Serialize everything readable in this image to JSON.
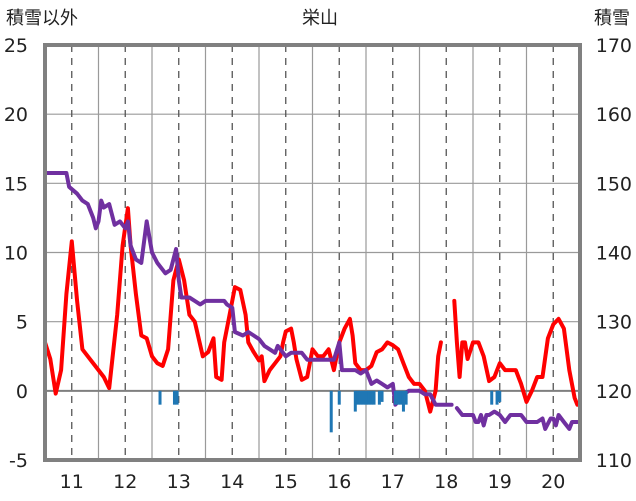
{
  "chart_data": {
    "type": "line",
    "title": "栄山",
    "left_axis_label": "積雪以外",
    "right_axis_label": "積雪",
    "x_ticks": [
      "11",
      "12",
      "13",
      "14",
      "15",
      "16",
      "17",
      "18",
      "19",
      "20"
    ],
    "xlim": [
      10.5,
      20.5
    ],
    "y_left": {
      "lim": [
        -5,
        25
      ],
      "ticks": [
        "-5",
        "0",
        "5",
        "10",
        "15",
        "20",
        "25"
      ]
    },
    "y_right": {
      "lim": [
        110,
        170
      ],
      "ticks": [
        "110",
        "120",
        "130",
        "140",
        "150",
        "160",
        "170"
      ]
    },
    "grid": {
      "vertical_dashed": true,
      "horizontal": true
    },
    "series": [
      {
        "axis": "left",
        "color": "#ff0000",
        "style": "line",
        "points": [
          [
            10.5,
            3.5
          ],
          [
            10.6,
            2.3
          ],
          [
            10.7,
            -0.2
          ],
          [
            10.8,
            1.5
          ],
          [
            10.9,
            7.0
          ],
          [
            11.0,
            10.8
          ],
          [
            11.1,
            6.5
          ],
          [
            11.2,
            3.0
          ],
          [
            11.3,
            2.5
          ],
          [
            11.5,
            1.5
          ],
          [
            11.6,
            1.0
          ],
          [
            11.7,
            0.2
          ],
          [
            11.85,
            5.5
          ],
          [
            11.95,
            10.5
          ],
          [
            12.05,
            13.2
          ],
          [
            12.1,
            10.5
          ],
          [
            12.2,
            7.0
          ],
          [
            12.3,
            4.0
          ],
          [
            12.4,
            3.8
          ],
          [
            12.5,
            2.5
          ],
          [
            12.6,
            2.0
          ],
          [
            12.7,
            1.8
          ],
          [
            12.8,
            3.0
          ],
          [
            12.9,
            8.0
          ],
          [
            13.0,
            9.5
          ],
          [
            13.1,
            8.0
          ],
          [
            13.2,
            5.5
          ],
          [
            13.3,
            5.0
          ],
          [
            13.45,
            2.5
          ],
          [
            13.55,
            2.8
          ],
          [
            13.65,
            3.8
          ],
          [
            13.7,
            1.0
          ],
          [
            13.8,
            0.8
          ],
          [
            13.85,
            3.5
          ],
          [
            13.95,
            5.5
          ],
          [
            14.05,
            7.5
          ],
          [
            14.15,
            7.3
          ],
          [
            14.25,
            5.5
          ],
          [
            14.3,
            3.5
          ],
          [
            14.4,
            2.8
          ],
          [
            14.5,
            2.2
          ],
          [
            14.55,
            2.5
          ],
          [
            14.6,
            0.7
          ],
          [
            14.7,
            1.5
          ],
          [
            14.8,
            2.0
          ],
          [
            14.9,
            2.5
          ],
          [
            14.95,
            3.5
          ],
          [
            15.0,
            4.3
          ],
          [
            15.1,
            4.5
          ],
          [
            15.15,
            3.5
          ],
          [
            15.2,
            2.3
          ],
          [
            15.3,
            0.8
          ],
          [
            15.4,
            1.0
          ],
          [
            15.5,
            3.0
          ],
          [
            15.6,
            2.5
          ],
          [
            15.7,
            2.5
          ],
          [
            15.8,
            3.0
          ],
          [
            15.9,
            1.5
          ],
          [
            16.0,
            3.5
          ],
          [
            16.1,
            4.5
          ],
          [
            16.2,
            5.2
          ],
          [
            16.25,
            4.0
          ],
          [
            16.3,
            2.0
          ],
          [
            16.4,
            1.5
          ],
          [
            16.5,
            1.5
          ],
          [
            16.6,
            1.8
          ],
          [
            16.7,
            2.8
          ],
          [
            16.8,
            3.0
          ],
          [
            16.9,
            3.5
          ],
          [
            17.0,
            3.3
          ],
          [
            17.1,
            3.0
          ],
          [
            17.2,
            2.0
          ],
          [
            17.3,
            1.0
          ],
          [
            17.4,
            0.5
          ],
          [
            17.5,
            0.5
          ],
          [
            17.6,
            0.0
          ],
          [
            17.7,
            -1.5
          ],
          [
            17.8,
            0.0
          ],
          [
            17.85,
            2.5
          ],
          [
            17.9,
            3.5
          ],
          null,
          [
            18.15,
            6.5
          ],
          [
            18.2,
            3.5
          ],
          [
            18.25,
            1.0
          ],
          [
            18.3,
            3.5
          ],
          [
            18.35,
            3.5
          ],
          [
            18.4,
            2.3
          ],
          [
            18.5,
            3.5
          ],
          [
            18.6,
            3.5
          ],
          [
            18.7,
            2.5
          ],
          [
            18.8,
            0.7
          ],
          [
            18.9,
            1.0
          ],
          [
            19.0,
            2.0
          ],
          [
            19.1,
            1.5
          ],
          [
            19.2,
            1.5
          ],
          [
            19.3,
            1.5
          ],
          [
            19.4,
            0.5
          ],
          [
            19.5,
            -0.8
          ],
          [
            19.6,
            0.0
          ],
          [
            19.7,
            1.0
          ],
          [
            19.8,
            1.0
          ],
          [
            19.9,
            3.8
          ],
          [
            20.0,
            4.8
          ],
          [
            20.1,
            5.2
          ],
          [
            20.2,
            4.5
          ],
          [
            20.3,
            1.5
          ],
          [
            20.4,
            -0.5
          ],
          [
            20.45,
            -1.0
          ]
        ]
      },
      {
        "axis": "right",
        "color": "#7030a0",
        "style": "line",
        "points": [
          [
            10.5,
            151.5
          ],
          [
            10.9,
            151.5
          ],
          [
            10.95,
            149.5
          ],
          [
            11.1,
            148.5
          ],
          [
            11.2,
            147.5
          ],
          [
            11.3,
            147.0
          ],
          [
            11.4,
            145.0
          ],
          [
            11.45,
            143.5
          ],
          [
            11.5,
            144.5
          ],
          [
            11.55,
            147.5
          ],
          [
            11.6,
            146.5
          ],
          [
            11.7,
            147.0
          ],
          [
            11.8,
            144.0
          ],
          [
            11.9,
            144.5
          ],
          [
            12.0,
            143.5
          ],
          [
            12.05,
            144.5
          ],
          [
            12.1,
            141.0
          ],
          [
            12.2,
            139.0
          ],
          [
            12.3,
            138.5
          ],
          [
            12.4,
            144.5
          ],
          [
            12.5,
            140.0
          ],
          [
            12.6,
            138.5
          ],
          [
            12.7,
            137.5
          ],
          [
            12.75,
            137.0
          ],
          [
            12.85,
            137.5
          ],
          [
            12.95,
            140.5
          ],
          [
            13.0,
            136.0
          ],
          [
            13.05,
            133.5
          ],
          [
            13.2,
            133.5
          ],
          [
            13.3,
            133.0
          ],
          [
            13.4,
            132.5
          ],
          [
            13.5,
            133.0
          ],
          [
            13.75,
            133.0
          ],
          [
            13.85,
            133.0
          ],
          [
            13.9,
            132.5
          ],
          [
            14.0,
            132.0
          ],
          [
            14.05,
            128.5
          ],
          [
            14.2,
            128.0
          ],
          [
            14.3,
            128.5
          ],
          [
            14.4,
            128.0
          ],
          [
            14.5,
            127.5
          ],
          [
            14.6,
            126.5
          ],
          [
            14.7,
            126.0
          ],
          [
            14.8,
            125.5
          ],
          [
            14.85,
            126.5
          ],
          [
            14.95,
            125.5
          ],
          [
            15.0,
            125.0
          ],
          [
            15.1,
            125.5
          ],
          [
            15.3,
            125.5
          ],
          [
            15.4,
            124.5
          ],
          [
            15.5,
            124.5
          ],
          [
            15.7,
            124.5
          ],
          [
            15.8,
            124.5
          ],
          [
            15.9,
            124.5
          ],
          [
            16.0,
            127.0
          ],
          [
            16.05,
            123.0
          ],
          [
            16.2,
            123.0
          ],
          [
            16.3,
            123.0
          ],
          [
            16.4,
            122.5
          ],
          [
            16.5,
            123.0
          ],
          [
            16.6,
            121.0
          ],
          [
            16.7,
            121.5
          ],
          [
            16.8,
            121.0
          ],
          [
            16.9,
            120.5
          ],
          [
            17.0,
            121.0
          ],
          [
            17.05,
            118.0
          ],
          [
            17.1,
            118.5
          ],
          [
            17.2,
            119.5
          ],
          [
            17.3,
            120.0
          ],
          [
            17.5,
            120.0
          ],
          [
            17.6,
            119.5
          ],
          [
            17.7,
            119.5
          ],
          [
            17.8,
            118.0
          ],
          [
            17.9,
            118.0
          ],
          [
            18.0,
            118.0
          ],
          [
            18.1,
            118.0
          ],
          null,
          [
            18.2,
            117.5
          ],
          [
            18.3,
            116.5
          ],
          [
            18.4,
            116.5
          ],
          [
            18.5,
            116.5
          ],
          [
            18.55,
            115.5
          ],
          [
            18.6,
            115.5
          ],
          [
            18.65,
            116.5
          ],
          [
            18.7,
            115.0
          ],
          [
            18.75,
            116.5
          ],
          [
            18.8,
            116.5
          ],
          [
            18.9,
            117.0
          ],
          [
            19.0,
            116.5
          ],
          [
            19.1,
            115.5
          ],
          [
            19.2,
            116.5
          ],
          [
            19.3,
            116.5
          ],
          [
            19.4,
            116.5
          ],
          [
            19.5,
            115.5
          ],
          [
            19.6,
            115.5
          ],
          [
            19.7,
            115.5
          ],
          [
            19.8,
            116.0
          ],
          [
            19.85,
            114.5
          ],
          [
            19.95,
            116.0
          ],
          [
            20.0,
            116.0
          ],
          [
            20.05,
            115.0
          ],
          [
            20.1,
            116.5
          ],
          [
            20.2,
            115.5
          ],
          [
            20.3,
            114.5
          ],
          [
            20.35,
            115.5
          ],
          [
            20.45,
            115.5
          ]
        ]
      },
      {
        "axis": "left",
        "color": "#1f77b4",
        "style": "bars",
        "points": [
          [
            12.65,
            -1.0
          ],
          [
            12.92,
            -1.0
          ],
          [
            12.97,
            -1.0
          ],
          [
            15.85,
            -3.0
          ],
          [
            16.0,
            -1.0
          ],
          [
            16.3,
            -1.5
          ],
          [
            16.35,
            -1.0
          ],
          [
            16.4,
            -1.0
          ],
          [
            16.45,
            -1.0
          ],
          [
            16.5,
            -1.0
          ],
          [
            16.55,
            -1.0
          ],
          [
            16.6,
            -1.0
          ],
          [
            16.65,
            -1.0
          ],
          [
            16.75,
            -1.0
          ],
          [
            16.8,
            -0.8
          ],
          [
            17.05,
            -1.0
          ],
          [
            17.1,
            -1.0
          ],
          [
            17.15,
            -1.0
          ],
          [
            17.2,
            -1.5
          ],
          [
            17.25,
            -1.0
          ],
          [
            18.85,
            -1.0
          ],
          [
            18.95,
            -1.0
          ],
          [
            19.0,
            -0.8
          ]
        ]
      }
    ]
  }
}
